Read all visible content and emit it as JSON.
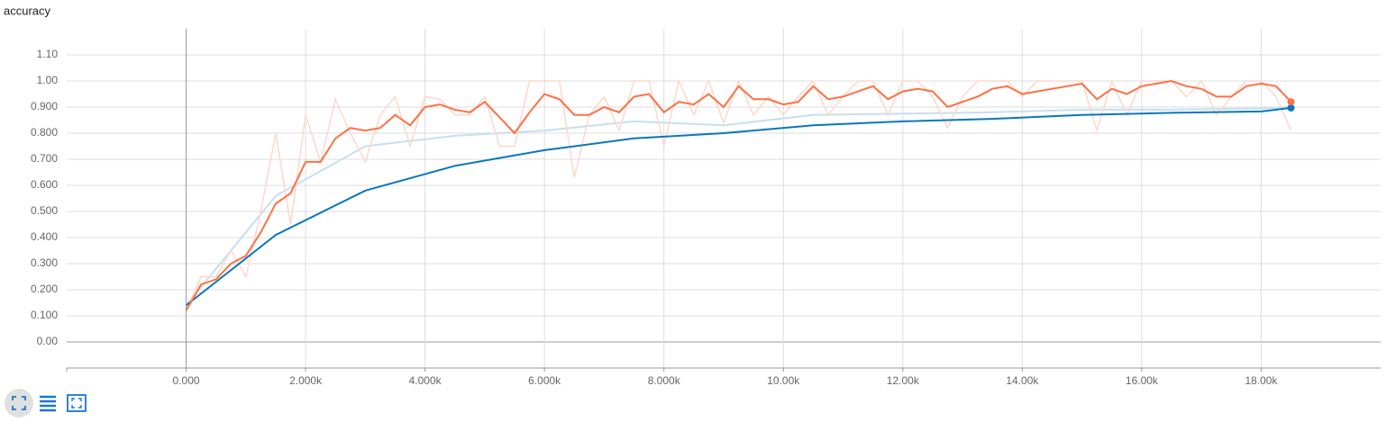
{
  "chart_data": {
    "type": "line",
    "title": "accuracy",
    "xlim": [
      -2000,
      20000
    ],
    "ylim": [
      -0.1,
      1.2
    ],
    "grid": true,
    "xticks": [
      {
        "value": 0,
        "label": "0.000"
      },
      {
        "value": 2000,
        "label": "2.000k"
      },
      {
        "value": 4000,
        "label": "4.000k"
      },
      {
        "value": 6000,
        "label": "6.000k"
      },
      {
        "value": 8000,
        "label": "8.000k"
      },
      {
        "value": 10000,
        "label": "10.00k"
      },
      {
        "value": 12000,
        "label": "12.00k"
      },
      {
        "value": 14000,
        "label": "14.00k"
      },
      {
        "value": 16000,
        "label": "16.00k"
      },
      {
        "value": 18000,
        "label": "18.00k"
      }
    ],
    "yticks": [
      {
        "value": 0,
        "label": "0.00"
      },
      {
        "value": 0.1,
        "label": "0.100"
      },
      {
        "value": 0.2,
        "label": "0.200"
      },
      {
        "value": 0.3,
        "label": "0.300"
      },
      {
        "value": 0.4,
        "label": "0.400"
      },
      {
        "value": 0.5,
        "label": "0.500"
      },
      {
        "value": 0.6,
        "label": "0.600"
      },
      {
        "value": 0.7,
        "label": "0.700"
      },
      {
        "value": 0.8,
        "label": "0.800"
      },
      {
        "value": 0.9,
        "label": "0.900"
      },
      {
        "value": 1,
        "label": "1.00"
      },
      {
        "value": 1.1,
        "label": "1.10"
      }
    ],
    "series": [
      {
        "color": "#c6dff0",
        "width": 2,
        "x": [
          0,
          1500,
          3000,
          4500,
          6000,
          7500,
          9000,
          10500,
          12000,
          13500,
          15000,
          16500,
          18000,
          18500
        ],
        "values": [
          0.14,
          0.56,
          0.75,
          0.79,
          0.81,
          0.845,
          0.83,
          0.87,
          0.875,
          0.88,
          0.89,
          0.89,
          0.895,
          0.9
        ]
      },
      {
        "color": "#fcd8cb",
        "width": 1.5,
        "x": [
          0,
          250,
          500,
          750,
          1000,
          1250,
          1500,
          1750,
          2000,
          2250,
          2500,
          2750,
          3000,
          3250,
          3500,
          3750,
          4000,
          4250,
          4500,
          4750,
          5000,
          5250,
          5500,
          5750,
          6000,
          6250,
          6500,
          6750,
          7000,
          7250,
          7500,
          7750,
          8000,
          8250,
          8500,
          8750,
          9000,
          9250,
          9500,
          9750,
          10000,
          10250,
          10500,
          10750,
          11000,
          11250,
          11500,
          11750,
          12000,
          12250,
          12500,
          12750,
          13000,
          13250,
          13500,
          13750,
          14000,
          14250,
          14500,
          14750,
          15000,
          15250,
          15500,
          15750,
          16000,
          16250,
          16500,
          16750,
          17000,
          17250,
          17500,
          17750,
          18000,
          18250,
          18500
        ],
        "values": [
          0.12,
          0.25,
          0.25,
          0.35,
          0.25,
          0.5,
          0.8,
          0.45,
          0.87,
          0.69,
          0.93,
          0.8,
          0.69,
          0.87,
          0.94,
          0.75,
          0.94,
          0.93,
          0.87,
          0.87,
          0.94,
          0.75,
          0.75,
          1,
          1,
          1,
          0.63,
          0.87,
          0.94,
          0.81,
          1,
          1,
          0.75,
          1,
          0.87,
          1,
          0.84,
          1,
          0.87,
          0.94,
          0.87,
          0.94,
          1,
          0.87,
          0.94,
          1,
          1,
          0.87,
          1,
          1,
          0.94,
          0.82,
          0.94,
          1,
          1,
          1,
          0.94,
          1,
          1,
          1,
          1,
          0.81,
          1,
          0.87,
          1,
          1,
          1,
          0.94,
          1,
          0.87,
          0.94,
          1,
          1,
          0.94,
          0.81
        ]
      },
      {
        "color": "#0877bd",
        "width": 2,
        "dot": true,
        "x": [
          0,
          1500,
          3000,
          4500,
          6000,
          7500,
          9000,
          10500,
          12000,
          13500,
          15000,
          16500,
          18000,
          18500
        ],
        "values": [
          0.14,
          0.41,
          0.58,
          0.675,
          0.735,
          0.78,
          0.8,
          0.83,
          0.845,
          0.855,
          0.87,
          0.878,
          0.883,
          0.897
        ]
      },
      {
        "color": "#ff7043",
        "width": 2,
        "dot": true,
        "x": [
          0,
          250,
          500,
          750,
          1000,
          1250,
          1500,
          1750,
          2000,
          2250,
          2500,
          2750,
          3000,
          3250,
          3500,
          3750,
          4000,
          4250,
          4500,
          4750,
          5000,
          5250,
          5500,
          5750,
          6000,
          6250,
          6500,
          6750,
          7000,
          7250,
          7500,
          7750,
          8000,
          8250,
          8500,
          8750,
          9000,
          9250,
          9500,
          9750,
          10000,
          10250,
          10500,
          10750,
          11000,
          11250,
          11500,
          11750,
          12000,
          12250,
          12500,
          12750,
          13000,
          13250,
          13500,
          13750,
          14000,
          14250,
          14500,
          14750,
          15000,
          15250,
          15500,
          15750,
          16000,
          16250,
          16500,
          16750,
          17000,
          17250,
          17500,
          17750,
          18000,
          18250,
          18500
        ],
        "values": [
          0.12,
          0.22,
          0.24,
          0.3,
          0.33,
          0.42,
          0.53,
          0.57,
          0.69,
          0.69,
          0.78,
          0.82,
          0.81,
          0.82,
          0.87,
          0.83,
          0.9,
          0.91,
          0.89,
          0.88,
          0.92,
          0.86,
          0.8,
          0.88,
          0.95,
          0.93,
          0.87,
          0.87,
          0.9,
          0.88,
          0.94,
          0.95,
          0.88,
          0.92,
          0.91,
          0.95,
          0.9,
          0.98,
          0.93,
          0.93,
          0.91,
          0.92,
          0.98,
          0.93,
          0.94,
          0.96,
          0.98,
          0.93,
          0.96,
          0.97,
          0.96,
          0.9,
          0.92,
          0.94,
          0.97,
          0.98,
          0.95,
          0.96,
          0.97,
          0.98,
          0.99,
          0.93,
          0.97,
          0.95,
          0.98,
          0.99,
          1,
          0.98,
          0.97,
          0.94,
          0.94,
          0.98,
          0.99,
          0.98,
          0.92
        ]
      }
    ]
  }
}
